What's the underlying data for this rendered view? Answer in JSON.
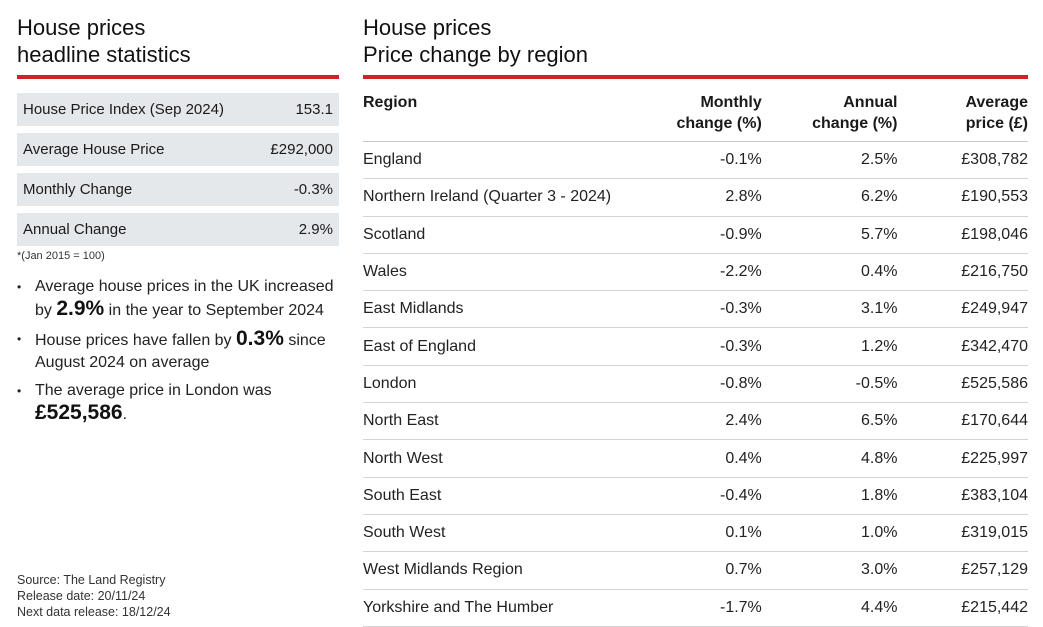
{
  "left": {
    "title_line1": "House prices",
    "title_line2": "headline statistics",
    "stats": [
      {
        "label": "House Price Index (Sep 2024)",
        "value": "153.1"
      },
      {
        "label": "Average House Price",
        "value": "£292,000"
      },
      {
        "label": "Monthly Change",
        "value": "-0.3%"
      },
      {
        "label": "Annual Change",
        "value": "2.9%"
      }
    ],
    "footnote": "*(Jan 2015 = 100)",
    "bullets": [
      {
        "pre": "Average house prices in the UK increased by ",
        "bold": "2.9%",
        "post": " in the year to September 2024"
      },
      {
        "pre": "House prices have fallen by ",
        "bold": "0.3%",
        "post": " since August 2024 on average"
      },
      {
        "pre": "The average price in London was ",
        "bold": "£525,586",
        "post": "."
      }
    ],
    "source": "Source: The Land Registry",
    "release_date": "Release date: 20/11/24",
    "next_release": "Next data release: 18/12/24"
  },
  "right": {
    "title_line1": "House prices",
    "title_line2": "Price change by region",
    "headers": {
      "region": "Region",
      "monthly_1": "Monthly",
      "monthly_2": "change (%)",
      "annual_1": "Annual",
      "annual_2": "change (%)",
      "avg_1": "Average",
      "avg_2": "price (£)"
    },
    "rows": [
      {
        "region": "England",
        "monthly": "-0.1%",
        "annual": "2.5%",
        "price": "£308,782"
      },
      {
        "region": "Northern Ireland (Quarter 3 - 2024)",
        "monthly": "2.8%",
        "annual": "6.2%",
        "price": "£190,553"
      },
      {
        "region": "Scotland",
        "monthly": "-0.9%",
        "annual": "5.7%",
        "price": "£198,046"
      },
      {
        "region": "Wales",
        "monthly": "-2.2%",
        "annual": "0.4%",
        "price": "£216,750"
      },
      {
        "region": "East Midlands",
        "monthly": "-0.3%",
        "annual": "3.1%",
        "price": "£249,947"
      },
      {
        "region": "East of England",
        "monthly": "-0.3%",
        "annual": "1.2%",
        "price": "£342,470"
      },
      {
        "region": "London",
        "monthly": "-0.8%",
        "annual": "-0.5%",
        "price": "£525,586"
      },
      {
        "region": "North East",
        "monthly": "2.4%",
        "annual": "6.5%",
        "price": "£170,644"
      },
      {
        "region": "North West",
        "monthly": "0.4%",
        "annual": "4.8%",
        "price": "£225,997"
      },
      {
        "region": "South East",
        "monthly": "-0.4%",
        "annual": "1.8%",
        "price": "£383,104"
      },
      {
        "region": "South West",
        "monthly": "0.1%",
        "annual": "1.0%",
        "price": "£319,015"
      },
      {
        "region": "West Midlands Region",
        "monthly": "0.7%",
        "annual": "3.0%",
        "price": "£257,129"
      },
      {
        "region": "Yorkshire and The Humber",
        "monthly": "-1.7%",
        "annual": "4.4%",
        "price": "£215,442"
      }
    ]
  },
  "colors": {
    "accent_rule": "#d0202a",
    "stat_bg": "#e4e8eb"
  }
}
